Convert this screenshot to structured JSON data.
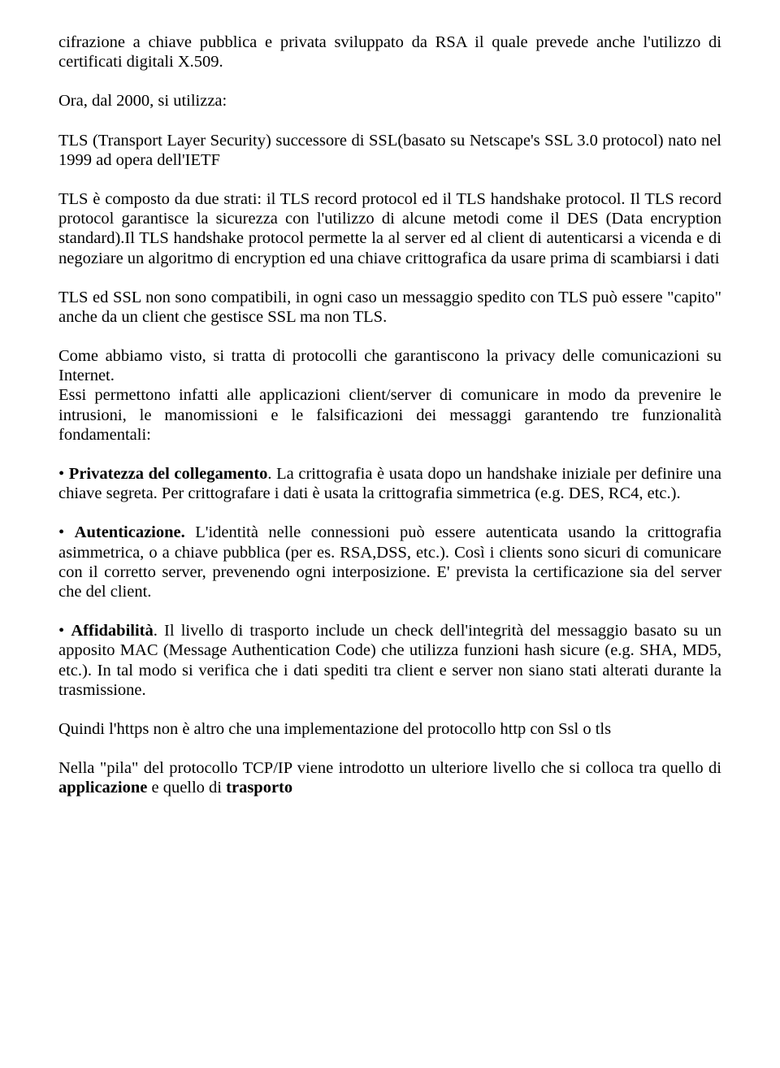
{
  "p1": "cifrazione a chiave pubblica e privata sviluppato da RSA il quale prevede anche l'utilizzo di certificati digitali X.509.",
  "p2": "Ora, dal 2000, si utilizza:",
  "p3": "TLS (Transport Layer Security) successore di SSL(basato su Netscape's SSL 3.0 protocol) nato nel 1999 ad opera dell'IETF",
  "p4": "TLS è composto da due strati: il TLS record protocol ed il TLS handshake protocol. Il TLS record protocol garantisce la sicurezza con l'utilizzo di alcune metodi come il DES (Data encryption standard).Il TLS handshake protocol permette la al server ed al client di autenticarsi a vicenda e di negoziare un algoritmo di encryption ed una chiave crittografica da usare prima di scambiarsi i dati",
  "p5": "TLS ed SSL non sono compatibili, in ogni caso un messaggio spedito con TLS può essere \"capito\" anche da un client che gestisce SSL ma non TLS.",
  "p6": "Come abbiamo visto, si tratta di protocolli che garantiscono la privacy delle comunicazioni su Internet.",
  "p7": "Essi permettono infatti alle applicazioni client/server di comunicare in modo da prevenire le intrusioni, le manomissioni e le falsificazioni dei messaggi garantendo tre funzionalità fondamentali:",
  "p8a": "• ",
  "p8b": "Privatezza del collegamento",
  "p8c": ". La crittografia è usata dopo un handshake iniziale per definire una chiave segreta. Per crittografare i dati è usata la crittografia simmetrica (e.g. DES, RC4, etc.).",
  "p9a": "• ",
  "p9b": "Autenticazione.",
  "p9c": " L'identità nelle connessioni può essere autenticata usando la crittografia asimmetrica, o a chiave pubblica (per es. RSA,DSS, etc.). Così i clients sono sicuri di comunicare con il corretto server, prevenendo ogni interposizione. E' prevista la certificazione sia del server che del client.",
  "p10a": "• ",
  "p10b": "Affidabilità",
  "p10c": ". Il livello di trasporto include un check dell'integrità del messaggio basato su un apposito MAC (Message Authentication Code) che utilizza funzioni hash sicure (e.g. SHA, MD5, etc.). In tal modo si verifica che i dati spediti tra client e server non siano stati alterati durante la trasmissione.",
  "p11": "Quindi l'https non è altro che una implementazione del protocollo http con Ssl o tls",
  "p12a": "Nella \"pila\" del protocollo TCP/IP viene introdotto un ulteriore livello che si colloca tra quello di ",
  "p12b": "applicazione",
  "p12c": " e quello di ",
  "p12d": "trasporto"
}
